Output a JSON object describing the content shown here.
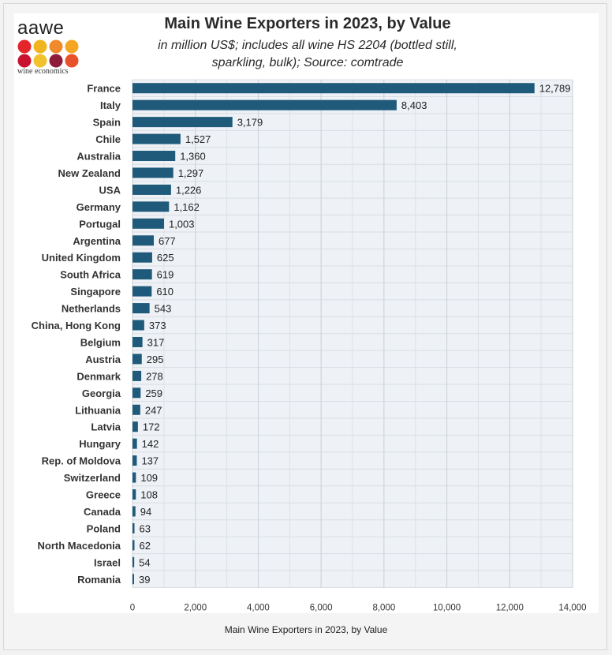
{
  "header": {
    "title": "Main Wine Exporters in 2023, by Value",
    "subtitle_line1": "in million US$; includes all wine HS 2204 (bottled still,",
    "subtitle_line2": "sparkling, bulk); Source: comtrade"
  },
  "logo": {
    "word": "aawe",
    "tagline": "wine economics",
    "dot_colors": [
      "#e4262c",
      "#f0b51e",
      "#f08a2a",
      "#f5a623",
      "#c8122e",
      "#f2c12e",
      "#8e1b3a",
      "#e8522a"
    ]
  },
  "caption": "Main Wine Exporters in 2023, by Value",
  "chart_data": {
    "type": "bar",
    "orientation": "horizontal",
    "title": "Main Wine Exporters in 2023, by Value",
    "categories": [
      "France",
      "Italy",
      "Spain",
      "Chile",
      "Australia",
      "New Zealand",
      "USA",
      "Germany",
      "Portugal",
      "Argentina",
      "United Kingdom",
      "South Africa",
      "Singapore",
      "Netherlands",
      "China, Hong Kong",
      "Belgium",
      "Austria",
      "Denmark",
      "Georgia",
      "Lithuania",
      "Latvia",
      "Hungary",
      "Rep. of Moldova",
      "Switzerland",
      "Greece",
      "Canada",
      "Poland",
      "North Macedonia",
      "Israel",
      "Romania"
    ],
    "values": [
      12789,
      8403,
      3179,
      1527,
      1360,
      1297,
      1226,
      1162,
      1003,
      677,
      625,
      619,
      610,
      543,
      373,
      317,
      295,
      278,
      259,
      247,
      172,
      142,
      137,
      109,
      108,
      94,
      63,
      62,
      54,
      39
    ],
    "value_labels": [
      "12,789",
      "8,403",
      "3,179",
      "1,527",
      "1,360",
      "1,297",
      "1,226",
      "1,162",
      "1,003",
      "677",
      "625",
      "619",
      "610",
      "543",
      "373",
      "317",
      "295",
      "278",
      "259",
      "247",
      "172",
      "142",
      "137",
      "109",
      "108",
      "94",
      "63",
      "62",
      "54",
      "39"
    ],
    "x_ticks": [
      0,
      2000,
      4000,
      6000,
      8000,
      10000,
      12000,
      14000
    ],
    "x_tick_labels": [
      "0",
      "2,000",
      "4,000",
      "6,000",
      "8,000",
      "10,000",
      "12,000",
      "14,000"
    ],
    "xlim": [
      0,
      14000
    ],
    "grid": true,
    "bar_color": "#1f5a7a",
    "plot_background": "#eef2f6"
  }
}
